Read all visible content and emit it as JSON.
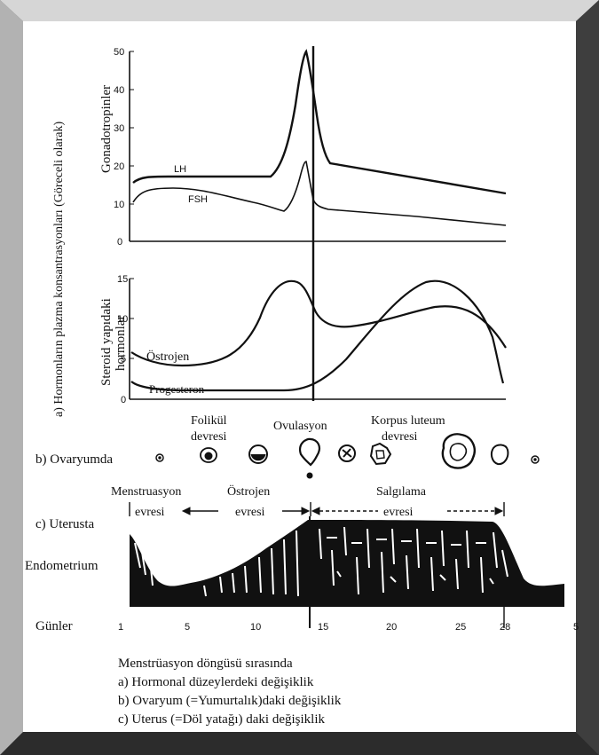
{
  "side_title": "a) Hormonların plazma konsantrasyonları (Göreceli olarak)",
  "gonado": {
    "ylabel": "Gonadotropinler",
    "ticks": [
      "50",
      "40",
      "30",
      "20",
      "10",
      "0"
    ],
    "lh_label": "LH",
    "fsh_label": "FSH"
  },
  "steroid": {
    "ylabel_line1": "Steroid yapıdaki",
    "ylabel_line2": "hormonlar",
    "ticks": [
      "15",
      "10",
      "5",
      "0"
    ],
    "estrogen_label": "Östrojen",
    "progesterone_label": "Progesteron"
  },
  "phases": {
    "follicular_line1": "Folikül",
    "follicular_line2": "devresi",
    "ovulation": "Ovulasyon",
    "luteal_line1": "Korpus luteum",
    "luteal_line2": "devresi"
  },
  "ovary_label": "b) Ovaryumda",
  "uterus": {
    "menstruation_line1": "Menstruasyon",
    "menstruation_line2": "evresi",
    "estrogen_line1": "Östrojen",
    "estrogen_line2": "evresi",
    "secretory_line1": "Salgılama",
    "secretory_line2": "evresi",
    "label": "c) Uterusta",
    "endometrium": "Endometrium"
  },
  "days": {
    "label": "Günler",
    "ticks": [
      "1",
      "5",
      "10",
      "15",
      "20",
      "25",
      "28",
      "5"
    ]
  },
  "caption": [
    "Menstrüasyon döngüsü sırasında",
    "a) Hormonal düzeylerdeki değişiklik",
    "b) Ovaryum (=Yumurtalık)daki değişiklik",
    "c) Uterus (=Döl yatağı) daki değişiklik"
  ],
  "colors": {
    "frame": "#5a5a5a",
    "panel": "#ffffff",
    "ink": "#111111"
  }
}
